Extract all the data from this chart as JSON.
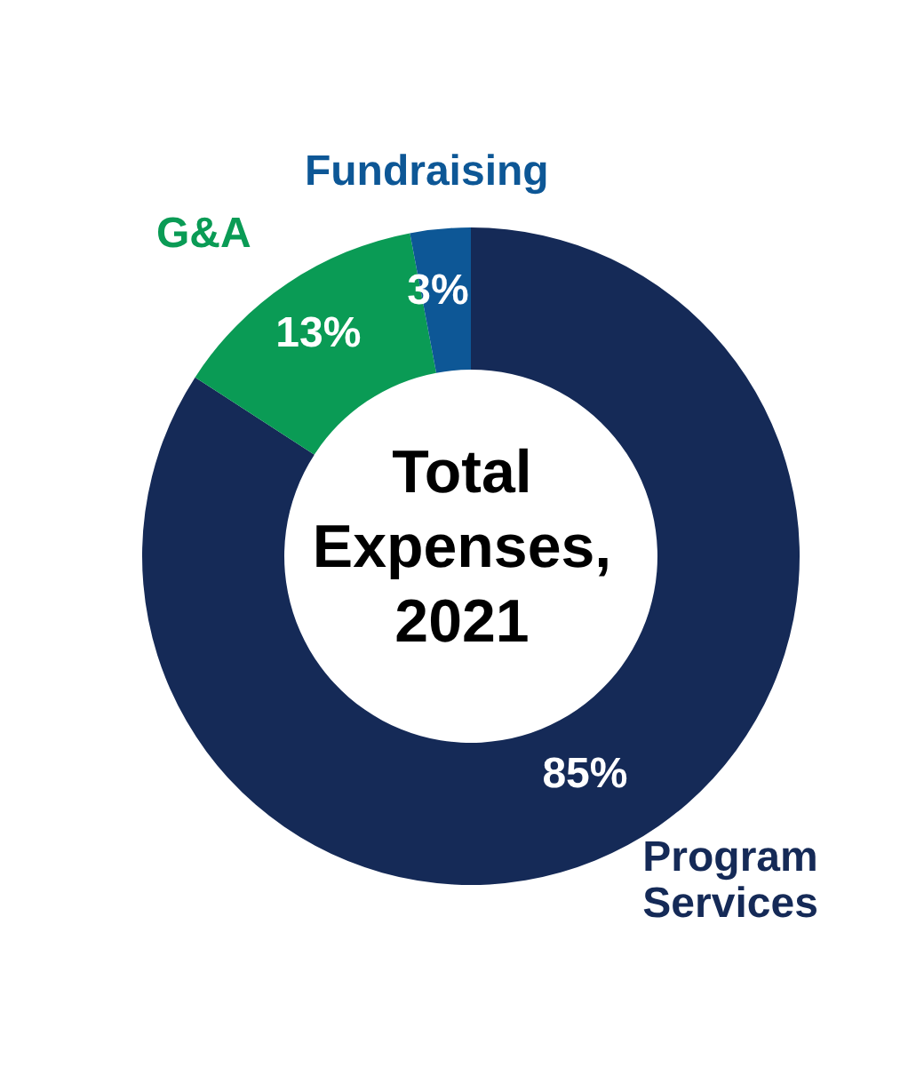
{
  "chart_data": {
    "type": "donut",
    "title": "Total Expenses, 2021",
    "categories": [
      "Program Services",
      "G&A",
      "Fundraising"
    ],
    "values": [
      85,
      13,
      3
    ],
    "colors": [
      "#152a57",
      "#0a9b55",
      "#0d5796"
    ],
    "value_labels": [
      "85%",
      "13%",
      "3%"
    ]
  }
}
